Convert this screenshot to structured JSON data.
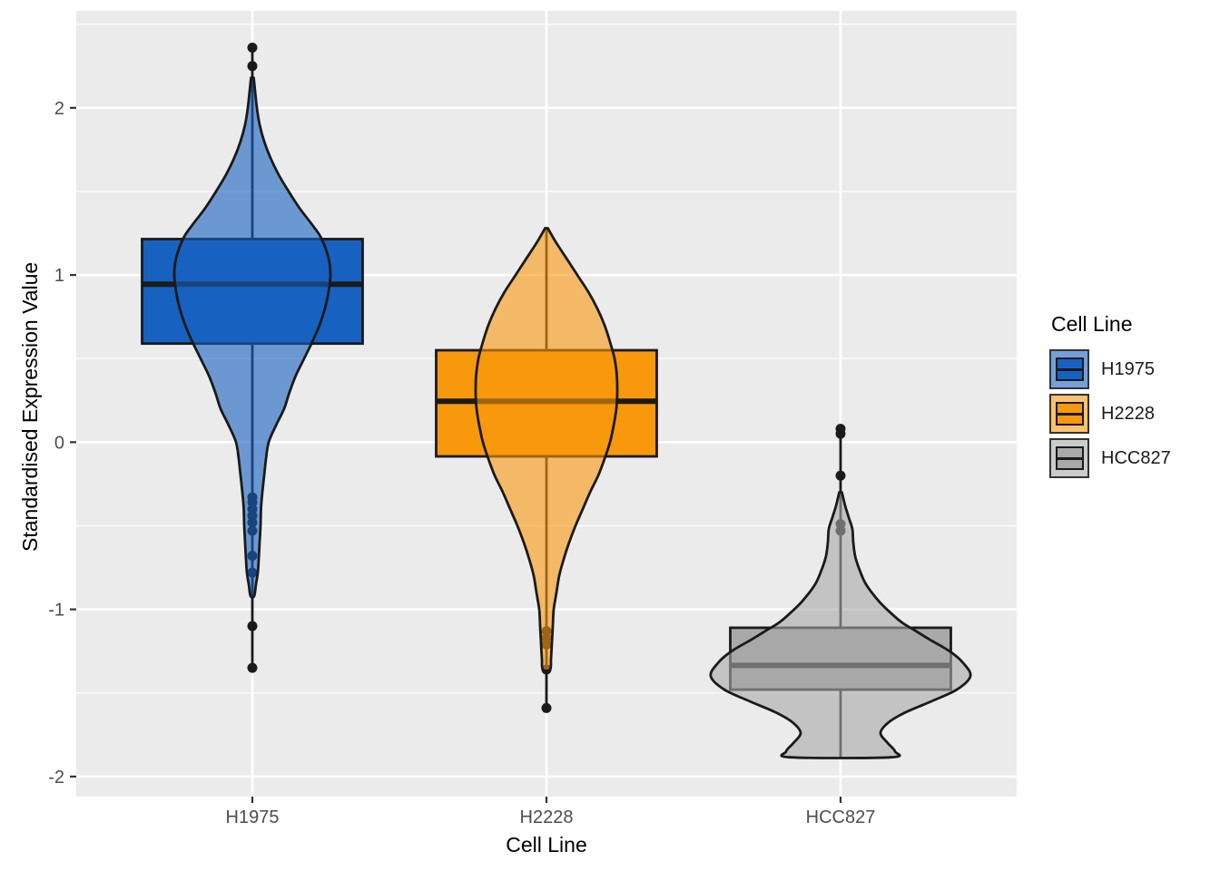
{
  "axes": {
    "y_title": "Standardised Expression Value",
    "x_title": "Cell Line"
  },
  "legend": {
    "title": "Cell Line",
    "entries": [
      {
        "label": "H1975",
        "color": "#1761C0"
      },
      {
        "label": "H2228",
        "color": "#F8980D"
      },
      {
        "label": "HCC827",
        "color": "#A9A9A9"
      }
    ]
  },
  "style": {
    "panel_bg": "#EBEBEB",
    "grid_color": "#FFFFFF",
    "axis_text_color": "#4D4D4D",
    "tick_mark_color": "#333333",
    "stroke_color": "#1A1A1A",
    "violin_alpha": 0.6
  },
  "chart_data": {
    "type": "violin+box",
    "title": "",
    "xlabel": "Cell Line",
    "ylabel": "Standardised Expression Value",
    "ylim": [
      -2.12,
      2.58
    ],
    "y_major_ticks": [
      2,
      1,
      0,
      -1,
      -2
    ],
    "y_minor_ticks": [
      2.5,
      1.5,
      0.5,
      -0.5,
      -1.5
    ],
    "categories": [
      "H1975",
      "H2228",
      "HCC827"
    ],
    "grid": true,
    "legend_position": "right",
    "series": [
      {
        "name": "H1975",
        "color": "#1761C0",
        "box": {
          "q1": 0.59,
          "median": 0.945,
          "q3": 1.215
        },
        "whisker_high": 2.36,
        "whisker_low": -1.35,
        "outliers": [
          2.36,
          2.25,
          -0.33,
          -0.36,
          -0.4,
          -0.44,
          -0.48,
          -0.53,
          -0.68,
          -0.78,
          -1.1,
          -1.35
        ],
        "violin_profile": [
          [
            2.18,
            1.5
          ],
          [
            2.1,
            3
          ],
          [
            2.0,
            5
          ],
          [
            1.9,
            8
          ],
          [
            1.8,
            13
          ],
          [
            1.7,
            20
          ],
          [
            1.6,
            29
          ],
          [
            1.5,
            40
          ],
          [
            1.4,
            52
          ],
          [
            1.3,
            66
          ],
          [
            1.22,
            76
          ],
          [
            1.1,
            84
          ],
          [
            1.0,
            86
          ],
          [
            0.9,
            84
          ],
          [
            0.8,
            80
          ],
          [
            0.7,
            74
          ],
          [
            0.6,
            66
          ],
          [
            0.5,
            57
          ],
          [
            0.4,
            48
          ],
          [
            0.3,
            41
          ],
          [
            0.2,
            35
          ],
          [
            0.1,
            26
          ],
          [
            0.0,
            18
          ],
          [
            -0.1,
            15
          ],
          [
            -0.2,
            13
          ],
          [
            -0.3,
            11
          ],
          [
            -0.4,
            9.5
          ],
          [
            -0.5,
            9
          ],
          [
            -0.6,
            8
          ],
          [
            -0.7,
            7
          ],
          [
            -0.78,
            6
          ],
          [
            -0.85,
            4
          ],
          [
            -0.92,
            2
          ]
        ]
      },
      {
        "name": "H2228",
        "color": "#F8980D",
        "box": {
          "q1": -0.085,
          "median": 0.245,
          "q3": 0.55
        },
        "whisker_high": 1.28,
        "whisker_low": -1.59,
        "outliers": [
          -1.13,
          -1.17,
          -1.21,
          -1.36,
          -1.59
        ],
        "violin_profile": [
          [
            1.28,
            1.5
          ],
          [
            1.2,
            10
          ],
          [
            1.1,
            22
          ],
          [
            1.0,
            34
          ],
          [
            0.9,
            46
          ],
          [
            0.8,
            56
          ],
          [
            0.7,
            64
          ],
          [
            0.6,
            70
          ],
          [
            0.5,
            75
          ],
          [
            0.4,
            77.5
          ],
          [
            0.3,
            78
          ],
          [
            0.2,
            77
          ],
          [
            0.1,
            74
          ],
          [
            0.0,
            70
          ],
          [
            -0.1,
            64
          ],
          [
            -0.2,
            57
          ],
          [
            -0.3,
            48
          ],
          [
            -0.4,
            40
          ],
          [
            -0.5,
            32
          ],
          [
            -0.6,
            25
          ],
          [
            -0.7,
            19
          ],
          [
            -0.8,
            14
          ],
          [
            -0.9,
            11
          ],
          [
            -1.0,
            8
          ],
          [
            -1.1,
            7
          ],
          [
            -1.2,
            6
          ],
          [
            -1.3,
            5
          ],
          [
            -1.36,
            4
          ]
        ]
      },
      {
        "name": "HCC827",
        "color": "#A9A9A9",
        "box": {
          "q1": -1.48,
          "median": -1.335,
          "q3": -1.11
        },
        "whisker_high": 0.08,
        "whisker_low": -1.885,
        "outliers": [
          0.08,
          0.05,
          -0.2,
          -0.49,
          -0.53
        ],
        "violin_profile": [
          [
            -0.3,
            1.5
          ],
          [
            -0.38,
            5
          ],
          [
            -0.45,
            9
          ],
          [
            -0.52,
            13
          ],
          [
            -0.6,
            14
          ],
          [
            -0.68,
            16
          ],
          [
            -0.75,
            20
          ],
          [
            -0.85,
            28
          ],
          [
            -0.95,
            42
          ],
          [
            -1.02,
            55
          ],
          [
            -1.08,
            68
          ],
          [
            -1.12,
            80
          ],
          [
            -1.18,
            98
          ],
          [
            -1.25,
            120
          ],
          [
            -1.32,
            135
          ],
          [
            -1.4,
            143
          ],
          [
            -1.48,
            128
          ],
          [
            -1.55,
            100
          ],
          [
            -1.62,
            70
          ],
          [
            -1.68,
            52
          ],
          [
            -1.74,
            44
          ],
          [
            -1.8,
            52
          ],
          [
            -1.85,
            60
          ],
          [
            -1.885,
            55
          ]
        ]
      }
    ]
  }
}
